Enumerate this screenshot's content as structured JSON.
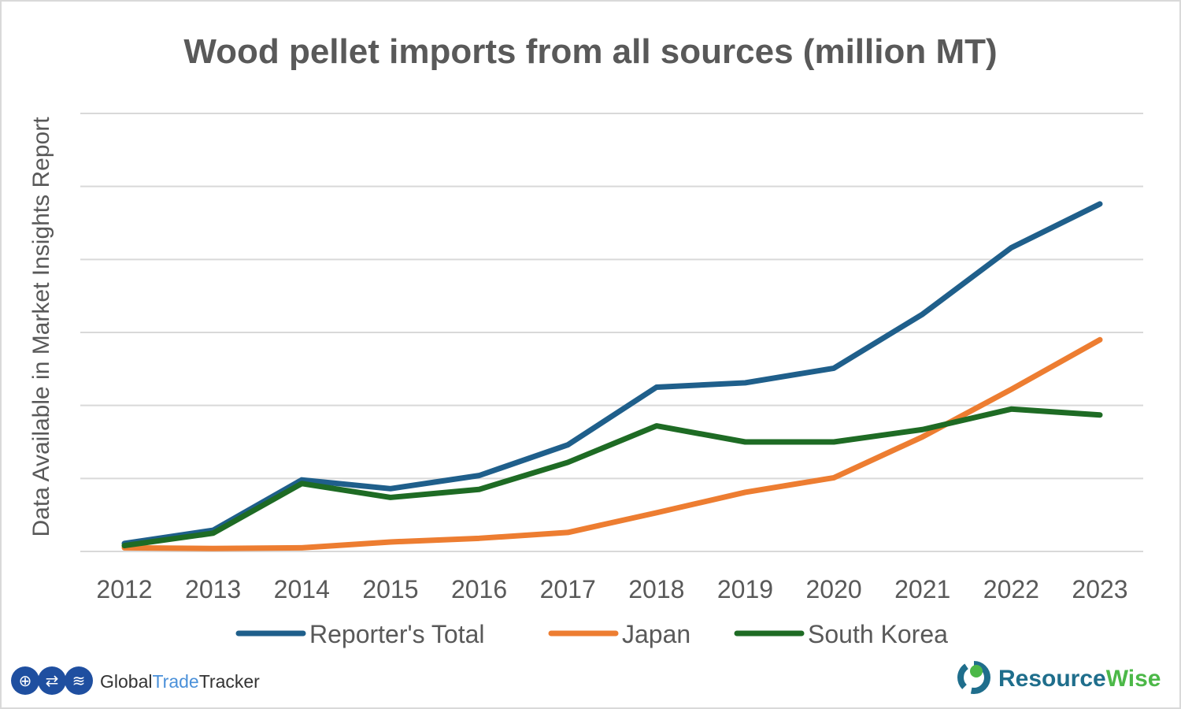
{
  "chart_data": {
    "type": "line",
    "title": "Wood pellet imports from all sources (million MT)",
    "ylabel": "Data Available in Market Insights Report",
    "xlabel": "",
    "y_tick_labels_shown": false,
    "ylim": [
      0,
      6
    ],
    "grid": true,
    "legend_position": "bottom",
    "categories": [
      "2012",
      "2013",
      "2014",
      "2015",
      "2016",
      "2017",
      "2018",
      "2019",
      "2020",
      "2021",
      "2022",
      "2023"
    ],
    "series": [
      {
        "name": "Reporter's Total",
        "color": "#1f5f8b",
        "values": [
          0.11,
          0.29,
          0.98,
          0.86,
          1.04,
          1.46,
          2.25,
          2.31,
          2.51,
          3.25,
          4.16,
          4.76
        ]
      },
      {
        "name": "Japan",
        "color": "#ed7d31",
        "values": [
          0.05,
          0.04,
          0.05,
          0.13,
          0.18,
          0.26,
          0.53,
          0.81,
          1.01,
          1.57,
          2.22,
          2.9
        ]
      },
      {
        "name": "South Korea",
        "color": "#1e6b24",
        "values": [
          0.08,
          0.25,
          0.93,
          0.74,
          0.85,
          1.22,
          1.72,
          1.5,
          1.5,
          1.67,
          1.95,
          1.87
        ]
      }
    ]
  },
  "logos": {
    "left": {
      "part1": "Global",
      "part2": "Trade",
      "part3": "Tracker"
    },
    "right": {
      "part1": "Resource",
      "part2": "Wise"
    }
  }
}
